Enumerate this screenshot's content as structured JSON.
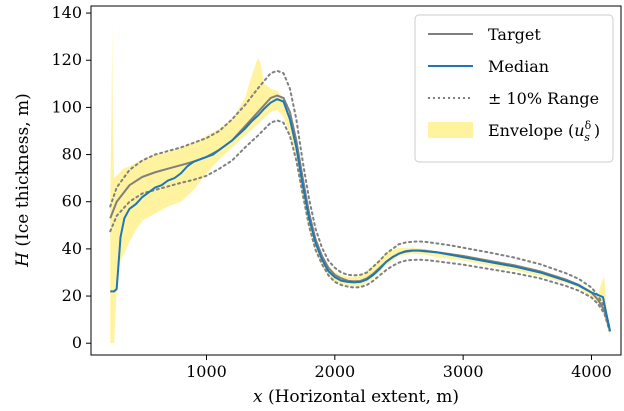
{
  "chart_data": {
    "type": "line",
    "xlabel_var": "x",
    "xlabel_text": " (Horizontal extent, m)",
    "ylabel_var": "H",
    "ylabel_text": " (Ice thickness, m)",
    "xlim": [
      100,
      4230
    ],
    "ylim": [
      -5,
      143
    ],
    "x_ticks": [
      1000,
      2000,
      3000,
      4000
    ],
    "y_ticks": [
      0,
      20,
      40,
      60,
      80,
      100,
      120,
      140
    ],
    "x_tick_labels": [
      "1000",
      "2000",
      "3000",
      "4000"
    ],
    "y_tick_labels": [
      "0",
      "20",
      "40",
      "60",
      "80",
      "100",
      "120",
      "140"
    ],
    "legend": {
      "placement": "top-right",
      "entries": [
        "Target",
        "Median",
        "± 10% Range",
        "Envelope"
      ],
      "envelope_label_main": "Envelope (",
      "envelope_label_var": "u",
      "envelope_label_sup": "δ",
      "envelope_label_sub": "s",
      "envelope_label_end": ")"
    },
    "colors": {
      "target": "#7f7f7f",
      "median": "#1f77b4",
      "range": "#808080",
      "envelope": "#fff3a0"
    },
    "series": [
      {
        "name": "Target",
        "x": [
          250,
          300,
          400,
          500,
          600,
          700,
          800,
          900,
          1000,
          1100,
          1200,
          1300,
          1400,
          1500,
          1550,
          1600,
          1650,
          1700,
          1750,
          1800,
          1850,
          1900,
          1950,
          2000,
          2050,
          2100,
          2150,
          2200,
          2250,
          2300,
          2350,
          2400,
          2450,
          2500,
          2550,
          2600,
          2650,
          2700,
          2800,
          2900,
          3000,
          3200,
          3400,
          3600,
          3800,
          3900,
          4000,
          4050,
          4100,
          4120,
          4140
        ],
        "y": [
          53,
          60,
          67,
          70.5,
          72.5,
          74,
          75.5,
          77,
          79,
          82,
          86,
          92,
          98,
          104,
          105,
          104,
          98,
          86,
          70,
          55,
          44,
          37,
          32,
          29,
          27.5,
          26.5,
          26.2,
          26.4,
          27.5,
          29.5,
          32,
          34.5,
          36.5,
          38,
          38.8,
          39.2,
          39.3,
          39.2,
          38.5,
          37.8,
          37,
          35,
          33,
          30.5,
          27,
          24.8,
          21.5,
          18.5,
          14,
          10,
          6
        ]
      },
      {
        "name": "Median",
        "x": [
          250,
          280,
          300,
          330,
          360,
          400,
          450,
          500,
          550,
          600,
          650,
          700,
          750,
          800,
          850,
          900,
          950,
          1000,
          1050,
          1100,
          1150,
          1200,
          1250,
          1300,
          1350,
          1400,
          1450,
          1500,
          1550,
          1600,
          1650,
          1700,
          1750,
          1800,
          1850,
          1900,
          1950,
          2000,
          2050,
          2100,
          2150,
          2200,
          2250,
          2300,
          2350,
          2400,
          2450,
          2500,
          2550,
          2600,
          2650,
          2700,
          2800,
          2900,
          3000,
          3200,
          3400,
          3600,
          3800,
          3900,
          4000,
          4050,
          4090,
          4110,
          4130,
          4145
        ],
        "y": [
          22,
          22,
          23,
          45,
          53,
          57,
          59,
          62,
          64,
          66,
          67,
          69,
          70,
          72,
          75,
          77,
          78,
          79,
          80,
          82,
          84,
          86,
          88.5,
          91,
          94,
          96.5,
          99.5,
          102,
          103.5,
          102.5,
          95,
          83,
          67,
          53,
          42.5,
          35.5,
          30.5,
          28,
          26.5,
          26,
          25.8,
          26,
          27,
          29,
          31.5,
          34.5,
          36.5,
          38,
          39,
          39.3,
          39.3,
          39,
          38.5,
          37.5,
          36.5,
          34.5,
          32.5,
          30,
          26.5,
          24.5,
          21.5,
          20.5,
          19.5,
          14,
          9,
          5
        ]
      },
      {
        "name": "± 10% Range (upper)",
        "x": [
          250,
          300,
          400,
          500,
          600,
          700,
          800,
          900,
          1000,
          1100,
          1200,
          1300,
          1400,
          1500,
          1550,
          1600,
          1650,
          1700,
          1750,
          1800,
          1850,
          1900,
          1950,
          2000,
          2050,
          2100,
          2150,
          2200,
          2250,
          2300,
          2350,
          2400,
          2450,
          2500,
          2550,
          2600,
          2650,
          2700,
          2800,
          2900,
          3000,
          3200,
          3400,
          3600,
          3800,
          3900,
          4000,
          4050,
          4100,
          4120,
          4140
        ],
        "y": [
          58,
          66,
          73.5,
          77.5,
          80,
          81.5,
          83,
          85,
          87,
          90,
          95,
          101,
          108,
          114.5,
          115.5,
          114.5,
          108,
          95,
          77,
          61,
          48.5,
          40.5,
          35,
          32,
          30,
          29,
          28.8,
          29,
          30,
          32.5,
          35,
          38,
          40,
          42,
          42.7,
          43,
          43.2,
          43,
          42.3,
          41.5,
          40.5,
          38.5,
          36.3,
          33.5,
          29.7,
          27.3,
          23.6,
          20.3,
          15.4,
          11,
          6.6
        ]
      },
      {
        "name": "± 10% Range (lower)",
        "x": [
          250,
          300,
          400,
          500,
          600,
          700,
          800,
          900,
          1000,
          1100,
          1200,
          1300,
          1400,
          1500,
          1550,
          1600,
          1650,
          1700,
          1750,
          1800,
          1850,
          1900,
          1950,
          2000,
          2050,
          2100,
          2150,
          2200,
          2250,
          2300,
          2350,
          2400,
          2450,
          2500,
          2550,
          2600,
          2650,
          2700,
          2800,
          2900,
          3000,
          3200,
          3400,
          3600,
          3800,
          3900,
          4000,
          4050,
          4100,
          4120,
          4140
        ],
        "y": [
          47.5,
          54,
          60,
          63.5,
          65,
          66.5,
          68,
          69.3,
          71,
          74,
          77.5,
          83,
          88,
          93.5,
          94.5,
          93.5,
          88,
          77.5,
          63,
          49.5,
          39.5,
          33.5,
          28.8,
          26,
          24.7,
          24,
          23.6,
          23.8,
          24.7,
          26.5,
          28.8,
          31,
          32.8,
          34.2,
          35,
          35.3,
          35.4,
          35.3,
          34.7,
          34,
          33.3,
          31.5,
          29.7,
          27.5,
          24.3,
          22.3,
          19.4,
          16.7,
          12.6,
          9,
          5.4
        ]
      },
      {
        "name": "Envelope (upper)",
        "x": [
          250,
          260,
          265,
          270,
          280,
          300,
          350,
          400,
          500,
          600,
          700,
          800,
          900,
          1000,
          1100,
          1200,
          1300,
          1350,
          1400,
          1420,
          1450,
          1500,
          1550,
          1600,
          1650,
          1700,
          1750,
          1800,
          1850,
          1900,
          1950,
          2000,
          2100,
          2200,
          2300,
          2400,
          2500,
          2600,
          2700,
          2800,
          3000,
          3200,
          3400,
          3600,
          3800,
          3900,
          4000,
          4050,
          4080,
          4100,
          4110,
          4130,
          4145
        ],
        "y": [
          62,
          100,
          136,
          96,
          70,
          71,
          74,
          75,
          78,
          80,
          81,
          83,
          85,
          88,
          91,
          95,
          104,
          113,
          121,
          119,
          110,
          108,
          107,
          104,
          98,
          87,
          72,
          57,
          45.5,
          38,
          33,
          30,
          28,
          28.5,
          33,
          38.5,
          40.5,
          40.5,
          40,
          39,
          37.5,
          35.5,
          33.5,
          31,
          27.5,
          25,
          22.5,
          20.5,
          26,
          28,
          20,
          10,
          6
        ]
      },
      {
        "name": "Envelope (lower)",
        "x": [
          250,
          260,
          270,
          280,
          300,
          330,
          360,
          400,
          450,
          500,
          600,
          700,
          800,
          900,
          1000,
          1100,
          1200,
          1300,
          1400,
          1500,
          1550,
          1600,
          1650,
          1700,
          1750,
          1800,
          1850,
          1900,
          1950,
          2000,
          2100,
          2200,
          2300,
          2400,
          2500,
          2600,
          2700,
          2800,
          3000,
          3200,
          3400,
          3600,
          3800,
          3900,
          4000,
          4050,
          4100,
          4130,
          4145
        ],
        "y": [
          0,
          0,
          0,
          0,
          22,
          35,
          38,
          43,
          48,
          52,
          55,
          58,
          60,
          65,
          72,
          78,
          83,
          88,
          93,
          98,
          99,
          96,
          89,
          77,
          62,
          48,
          39,
          32.5,
          28.5,
          26,
          24.5,
          24,
          27.5,
          33,
          37,
          38,
          37.5,
          36.5,
          35,
          33,
          31,
          28.5,
          25.5,
          23.5,
          19.5,
          17,
          12,
          5,
          4
        ]
      }
    ]
  }
}
